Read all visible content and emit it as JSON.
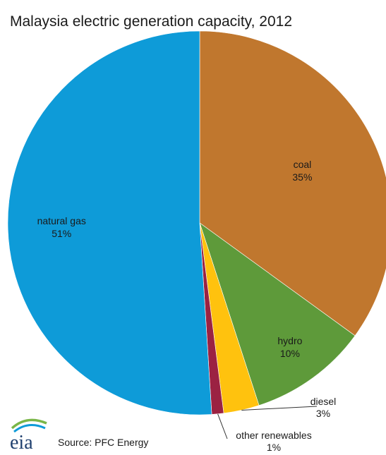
{
  "chart_data": {
    "type": "pie",
    "title": "Malaysia electric generation capacity, 2012",
    "slices": [
      {
        "name": "coal",
        "value": 35,
        "label": "35%",
        "color": "#c0772e"
      },
      {
        "name": "hydro",
        "value": 10,
        "label": "10%",
        "color": "#5e9a3a"
      },
      {
        "name": "diesel",
        "value": 3,
        "label": "3%",
        "color": "#ffc20e"
      },
      {
        "name": "other renewables",
        "value": 1,
        "label": "1%",
        "color": "#9b2242"
      },
      {
        "name": "natural gas",
        "value": 51,
        "label": "51%",
        "color": "#0e9bd8"
      }
    ],
    "start_angle_deg": 0,
    "direction": "clockwise"
  },
  "footer": {
    "source": "Source:  PFC Energy",
    "logo_text": "eia",
    "logo_arc_colors": [
      "#7ab648",
      "#0e9bd8"
    ]
  }
}
